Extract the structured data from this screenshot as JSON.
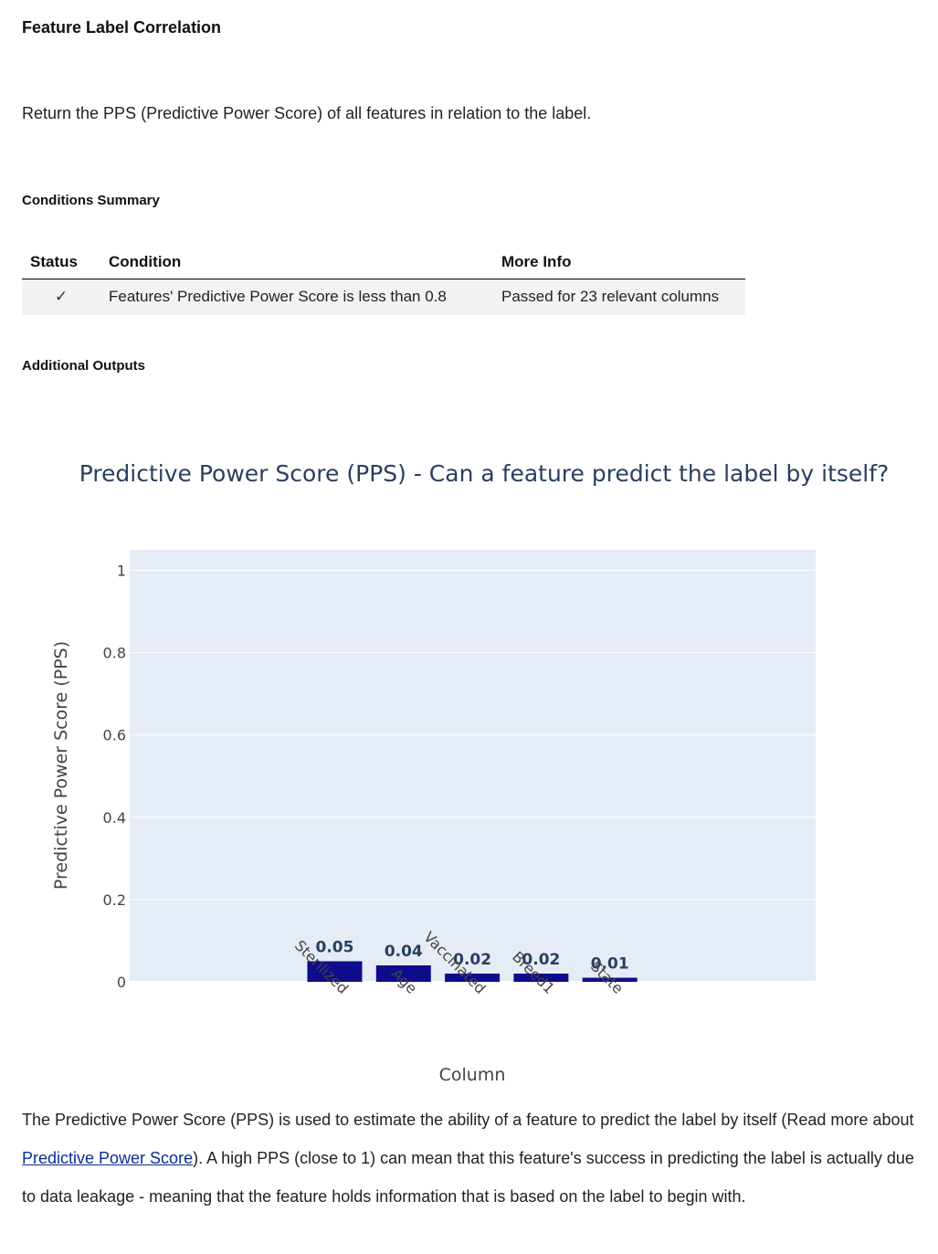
{
  "heading": "Feature Label Correlation",
  "description": "Return the PPS (Predictive Power Score) of all features in relation to the label.",
  "conditions_summary": {
    "title": "Conditions Summary",
    "columns": [
      "Status",
      "Condition",
      "More Info"
    ],
    "rows": [
      {
        "status": "✓",
        "condition": "Features' Predictive Power Score is less than 0.8",
        "more_info": "Passed for 23 relevant columns"
      }
    ]
  },
  "additional_outputs_title": "Additional Outputs",
  "colors": {
    "bar": "#0d0d8c",
    "plot_bg": "#e5ecf6",
    "title_text": "#2a3f5f",
    "axis_text": "#444444"
  },
  "chart_data": {
    "type": "bar",
    "title": "Predictive Power Score (PPS) - Can a feature predict the label by itself?",
    "xlabel": "Column",
    "ylabel": "Predictive Power Score (PPS)",
    "ylim": [
      0,
      1.05
    ],
    "yticks": [
      0,
      0.2,
      0.4,
      0.6,
      0.8,
      1
    ],
    "ytick_labels": [
      "0",
      "0.2",
      "0.4",
      "0.6",
      "0.8",
      "1"
    ],
    "categories": [
      "Sterilized",
      "Age",
      "Vaccinated",
      "Breed1",
      "State"
    ],
    "values": [
      0.05,
      0.04,
      0.02,
      0.02,
      0.01
    ],
    "data_labels": [
      "0.05",
      "0.04",
      "0.02",
      "0.02",
      "0.01"
    ],
    "grid": true
  },
  "footer": {
    "text_before_link": "The Predictive Power Score (PPS) is used to estimate the ability of a feature to predict the label by itself (Read more about ",
    "link_text": "Predictive Power Score",
    "text_after_link": "). A high PPS (close to 1) can mean that this feature's success in predicting the label is actually due to data leakage - meaning that the feature holds information that is based on the label to begin with."
  }
}
